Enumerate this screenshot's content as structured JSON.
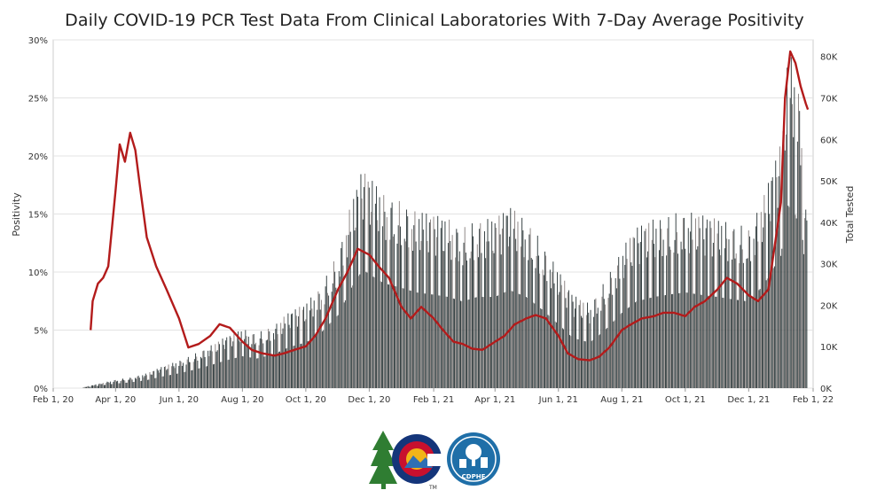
{
  "title": "Daily COVID-19 PCR Test Data From Clinical Laboratories With 7-Day Average Positivity",
  "logo_text": "CDPHE",
  "colors": {
    "line": "#b31b1b",
    "bar_dark": "#2f3a3c",
    "bar_light": "#8a8280",
    "grid": "#e3e3e3"
  },
  "chart_data": {
    "type": "bar",
    "title": "Daily COVID-19 PCR Test Data From Clinical Laboratories With 7-Day Average Positivity",
    "xlabel": "",
    "ylabel": "Positivity",
    "y2label": "Total Tested",
    "x_ticks": [
      "Feb 1, 20",
      "Apr 1, 20",
      "Jun 1, 20",
      "Aug 1, 20",
      "Oct 1, 20",
      "Dec 1, 20",
      "Feb 1, 21",
      "Apr 1, 21",
      "Jun 1, 21",
      "Aug 1, 21",
      "Oct 1, 21",
      "Dec 1, 21",
      "Feb 1, 22"
    ],
    "y_ticks": [
      "0%",
      "5%",
      "10%",
      "15%",
      "20%",
      "25%",
      "30%"
    ],
    "y2_ticks": [
      "0K",
      "10K",
      "20K",
      "30K",
      "40K",
      "50K",
      "60K",
      "70K",
      "80K"
    ],
    "xlim": [
      "2020-02-01",
      "2022-02-01"
    ],
    "ylim": [
      0,
      30
    ],
    "y2lim": [
      0,
      84000
    ],
    "grid": true,
    "series": [
      {
        "type": "bar",
        "axis": "right",
        "x": [
          "2020-03-01",
          "2020-03-15",
          "2020-04-01",
          "2020-04-15",
          "2020-05-01",
          "2020-05-15",
          "2020-06-01",
          "2020-06-15",
          "2020-07-01",
          "2020-07-15",
          "2020-08-01",
          "2020-08-15",
          "2020-09-01",
          "2020-09-15",
          "2020-10-01",
          "2020-10-15",
          "2020-11-01",
          "2020-11-15",
          "2020-11-25",
          "2020-12-01",
          "2020-12-15",
          "2021-01-01",
          "2021-01-15",
          "2021-02-01",
          "2021-02-15",
          "2021-03-01",
          "2021-03-15",
          "2021-04-01",
          "2021-04-15",
          "2021-05-01",
          "2021-05-15",
          "2021-06-01",
          "2021-06-15",
          "2021-07-01",
          "2021-07-15",
          "2021-08-01",
          "2021-08-15",
          "2021-09-01",
          "2021-09-15",
          "2021-10-01",
          "2021-10-15",
          "2021-11-01",
          "2021-11-15",
          "2021-12-01",
          "2021-12-15",
          "2022-01-01",
          "2022-01-08",
          "2022-01-15",
          "2022-01-22",
          "2022-01-26"
        ],
        "values": [
          200,
          1000,
          2000,
          2500,
          3500,
          5000,
          6500,
          8000,
          10000,
          12000,
          14000,
          13000,
          15000,
          18000,
          20000,
          24000,
          32000,
          45000,
          52000,
          50000,
          46000,
          44000,
          42000,
          41000,
          40000,
          38000,
          40000,
          40000,
          43000,
          40000,
          35000,
          28000,
          22000,
          20000,
          25000,
          33000,
          38000,
          40000,
          41000,
          42000,
          41000,
          40000,
          39000,
          38000,
          45000,
          58000,
          80000,
          76000,
          65000,
          40000
        ]
      },
      {
        "type": "line",
        "axis": "left",
        "name": "",
        "x": [
          "2020-03-08",
          "2020-03-10",
          "2020-03-15",
          "2020-03-20",
          "2020-03-25",
          "2020-04-01",
          "2020-04-05",
          "2020-04-10",
          "2020-04-15",
          "2020-04-20",
          "2020-04-25",
          "2020-05-01",
          "2020-05-10",
          "2020-05-20",
          "2020-06-01",
          "2020-06-10",
          "2020-06-20",
          "2020-07-01",
          "2020-07-10",
          "2020-07-20",
          "2020-08-01",
          "2020-08-10",
          "2020-08-20",
          "2020-09-01",
          "2020-09-10",
          "2020-09-20",
          "2020-10-01",
          "2020-10-10",
          "2020-10-20",
          "2020-11-01",
          "2020-11-10",
          "2020-11-20",
          "2020-12-01",
          "2020-12-10",
          "2020-12-20",
          "2021-01-01",
          "2021-01-10",
          "2021-01-20",
          "2021-02-01",
          "2021-02-10",
          "2021-02-20",
          "2021-03-01",
          "2021-03-10",
          "2021-03-20",
          "2021-04-01",
          "2021-04-10",
          "2021-04-20",
          "2021-05-01",
          "2021-05-10",
          "2021-05-20",
          "2021-06-01",
          "2021-06-10",
          "2021-06-20",
          "2021-07-01",
          "2021-07-10",
          "2021-07-20",
          "2021-08-01",
          "2021-08-10",
          "2021-08-20",
          "2021-09-01",
          "2021-09-10",
          "2021-09-20",
          "2021-10-01",
          "2021-10-10",
          "2021-10-20",
          "2021-11-01",
          "2021-11-10",
          "2021-11-20",
          "2021-12-01",
          "2021-12-10",
          "2021-12-20",
          "2022-01-01",
          "2022-01-05",
          "2022-01-10",
          "2022-01-15",
          "2022-01-20",
          "2022-01-25",
          "2022-01-27"
        ],
        "values": [
          5.0,
          7.5,
          9.0,
          9.5,
          10.5,
          17.0,
          21.0,
          19.5,
          22.0,
          20.5,
          17.0,
          13.0,
          10.5,
          8.5,
          6.0,
          3.5,
          3.8,
          4.5,
          5.5,
          5.2,
          4.0,
          3.3,
          3.0,
          2.8,
          3.0,
          3.3,
          3.6,
          4.5,
          6.0,
          8.5,
          10.0,
          12.0,
          11.5,
          10.5,
          9.5,
          7.0,
          6.0,
          7.0,
          6.0,
          5.0,
          4.0,
          3.8,
          3.4,
          3.3,
          4.0,
          4.5,
          5.5,
          6.0,
          6.3,
          6.0,
          4.5,
          3.0,
          2.5,
          2.4,
          2.7,
          3.5,
          5.0,
          5.5,
          6.0,
          6.2,
          6.5,
          6.5,
          6.2,
          7.0,
          7.5,
          8.5,
          9.5,
          9.0,
          8.0,
          7.5,
          8.5,
          16.0,
          25.0,
          29.0,
          28.0,
          26.0,
          24.5,
          24.0
        ]
      }
    ]
  }
}
